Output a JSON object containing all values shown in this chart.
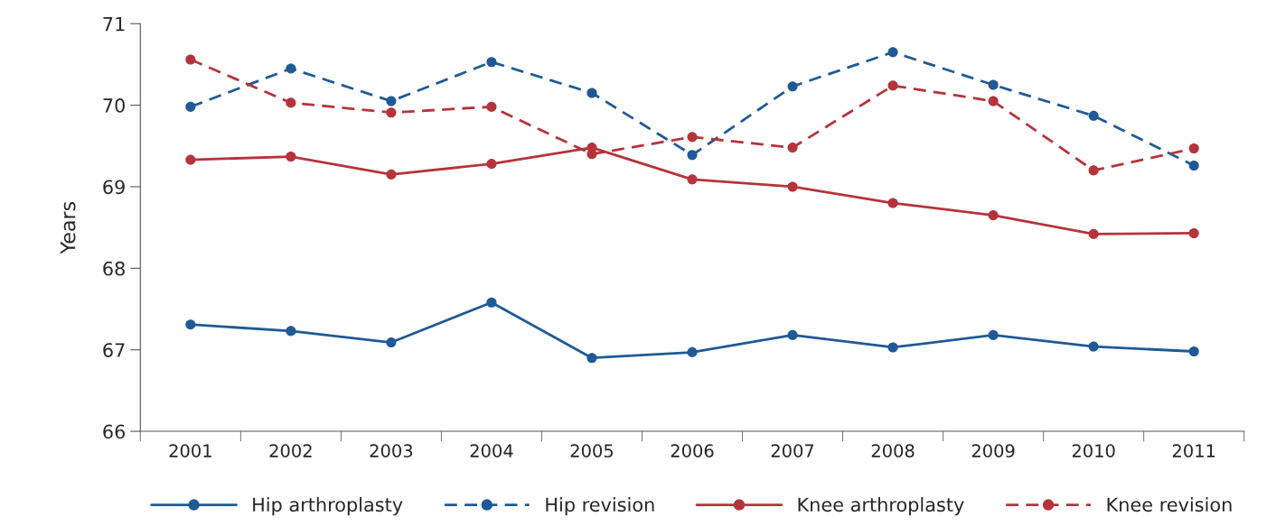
{
  "chart_data": {
    "type": "line",
    "ylabel": "Years",
    "categories": [
      "2001",
      "2002",
      "2003",
      "2004",
      "2005",
      "2006",
      "2007",
      "2008",
      "2009",
      "2010",
      "2011"
    ],
    "series": [
      {
        "name": "Hip arthroplasty",
        "color": "#1f5a96",
        "line_style": "solid",
        "values": [
          67.31,
          67.23,
          67.09,
          67.58,
          66.9,
          66.97,
          67.18,
          67.03,
          67.18,
          67.04,
          66.98
        ]
      },
      {
        "name": "Hip revision",
        "color": "#1f5a96",
        "line_style": "dashed",
        "values": [
          69.98,
          70.45,
          70.05,
          70.53,
          70.15,
          69.39,
          70.23,
          70.65,
          70.25,
          69.87,
          69.26
        ]
      },
      {
        "name": "Knee arthroplasty",
        "color": "#b5343c",
        "line_style": "solid",
        "values": [
          69.33,
          69.37,
          69.15,
          69.28,
          69.48,
          69.09,
          69.0,
          68.8,
          68.65,
          68.42,
          68.43
        ]
      },
      {
        "name": "Knee revision",
        "color": "#b5343c",
        "line_style": "dashed",
        "values": [
          70.56,
          70.03,
          69.91,
          69.98,
          69.4,
          69.61,
          69.48,
          70.24,
          70.05,
          69.2,
          69.47
        ]
      }
    ],
    "ylim": [
      66,
      71
    ],
    "yticks": [
      66,
      67,
      68,
      69,
      70,
      71
    ],
    "marker": "circle",
    "grid": false,
    "legend": "bottom"
  }
}
